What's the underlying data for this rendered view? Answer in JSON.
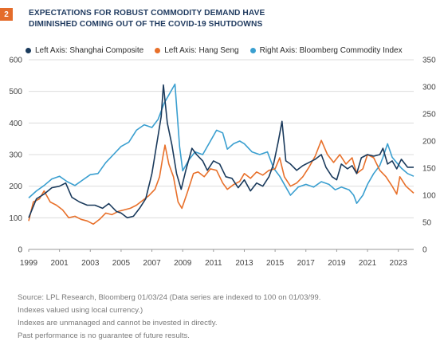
{
  "badge": "2",
  "title_lines": [
    "EXPECTATIONS FOR ROBUST COMMODITY DEMAND HAVE",
    "DIMINISHED COMING OUT OF THE COVID-19 SHUTDOWNS"
  ],
  "notes": [
    "Source: LPL Research, Bloomberg 01/03/24  (Data series are indexed to 100 on 01/03/99.",
    "Indexes valued using local currency.)",
    "Indexes are unmanaged and cannot be invested in directly.",
    "Past performance is no guarantee of future results."
  ],
  "chart_data": {
    "type": "line",
    "left_axis": {
      "min": 0,
      "max": 600,
      "ticks": [
        "0",
        "100",
        "200",
        "300",
        "400",
        "500",
        "600"
      ]
    },
    "right_axis": {
      "min": 0,
      "max": 350,
      "ticks": [
        "0",
        "50",
        "100",
        "150",
        "200",
        "250",
        "300",
        "350"
      ]
    },
    "x_axis": {
      "min": 1999,
      "max": 2024,
      "ticks": [
        "1999",
        "2001",
        "2003",
        "2005",
        "2007",
        "2009",
        "2011",
        "2013",
        "2015",
        "2017",
        "2019",
        "2021",
        "2023"
      ]
    },
    "grid": "horizontal",
    "legend_position": "top",
    "series": [
      {
        "name": "Left Axis: Shanghai Composite",
        "axis": "left",
        "color": "#1a3a5c",
        "points": [
          [
            1999.0,
            100
          ],
          [
            1999.5,
            160
          ],
          [
            2000.0,
            175
          ],
          [
            2000.5,
            195
          ],
          [
            2001.0,
            200
          ],
          [
            2001.4,
            210
          ],
          [
            2001.8,
            165
          ],
          [
            2002.3,
            150
          ],
          [
            2002.8,
            140
          ],
          [
            2003.3,
            140
          ],
          [
            2003.8,
            130
          ],
          [
            2004.2,
            145
          ],
          [
            2004.7,
            120
          ],
          [
            2005.0,
            115
          ],
          [
            2005.4,
            100
          ],
          [
            2005.8,
            105
          ],
          [
            2006.2,
            130
          ],
          [
            2006.6,
            160
          ],
          [
            2007.0,
            240
          ],
          [
            2007.3,
            330
          ],
          [
            2007.6,
            420
          ],
          [
            2007.75,
            520
          ],
          [
            2008.0,
            400
          ],
          [
            2008.3,
            330
          ],
          [
            2008.6,
            240
          ],
          [
            2008.9,
            190
          ],
          [
            2009.2,
            250
          ],
          [
            2009.6,
            320
          ],
          [
            2009.9,
            300
          ],
          [
            2010.3,
            280
          ],
          [
            2010.6,
            250
          ],
          [
            2011.0,
            280
          ],
          [
            2011.4,
            270
          ],
          [
            2011.8,
            230
          ],
          [
            2012.2,
            225
          ],
          [
            2012.6,
            195
          ],
          [
            2013.0,
            220
          ],
          [
            2013.4,
            185
          ],
          [
            2013.8,
            210
          ],
          [
            2014.2,
            200
          ],
          [
            2014.6,
            230
          ],
          [
            2014.9,
            270
          ],
          [
            2015.2,
            340
          ],
          [
            2015.45,
            405
          ],
          [
            2015.7,
            280
          ],
          [
            2016.0,
            270
          ],
          [
            2016.4,
            250
          ],
          [
            2016.8,
            265
          ],
          [
            2017.2,
            275
          ],
          [
            2017.6,
            285
          ],
          [
            2018.0,
            300
          ],
          [
            2018.3,
            260
          ],
          [
            2018.7,
            230
          ],
          [
            2019.0,
            220
          ],
          [
            2019.3,
            270
          ],
          [
            2019.7,
            255
          ],
          [
            2020.0,
            265
          ],
          [
            2020.3,
            240
          ],
          [
            2020.6,
            290
          ],
          [
            2021.0,
            300
          ],
          [
            2021.4,
            295
          ],
          [
            2021.8,
            300
          ],
          [
            2022.0,
            320
          ],
          [
            2022.3,
            270
          ],
          [
            2022.6,
            280
          ],
          [
            2022.9,
            255
          ],
          [
            2023.2,
            285
          ],
          [
            2023.6,
            260
          ],
          [
            2024.0,
            260
          ]
        ]
      },
      {
        "name": "Left Axis: Hang Seng",
        "axis": "left",
        "color": "#e8702a",
        "points": [
          [
            1999.0,
            90
          ],
          [
            1999.3,
            150
          ],
          [
            1999.7,
            160
          ],
          [
            2000.0,
            185
          ],
          [
            2000.4,
            150
          ],
          [
            2000.8,
            140
          ],
          [
            2001.2,
            125
          ],
          [
            2001.6,
            100
          ],
          [
            2002.0,
            105
          ],
          [
            2002.4,
            95
          ],
          [
            2002.8,
            90
          ],
          [
            2003.2,
            80
          ],
          [
            2003.6,
            95
          ],
          [
            2004.0,
            115
          ],
          [
            2004.4,
            110
          ],
          [
            2004.8,
            120
          ],
          [
            2005.2,
            125
          ],
          [
            2005.6,
            130
          ],
          [
            2006.0,
            140
          ],
          [
            2006.4,
            155
          ],
          [
            2006.8,
            170
          ],
          [
            2007.2,
            190
          ],
          [
            2007.5,
            230
          ],
          [
            2007.7,
            290
          ],
          [
            2007.85,
            330
          ],
          [
            2008.1,
            270
          ],
          [
            2008.4,
            230
          ],
          [
            2008.7,
            150
          ],
          [
            2008.95,
            130
          ],
          [
            2009.3,
            180
          ],
          [
            2009.7,
            240
          ],
          [
            2010.0,
            245
          ],
          [
            2010.4,
            230
          ],
          [
            2010.8,
            255
          ],
          [
            2011.2,
            250
          ],
          [
            2011.6,
            210
          ],
          [
            2011.9,
            190
          ],
          [
            2012.3,
            205
          ],
          [
            2012.7,
            215
          ],
          [
            2013.0,
            240
          ],
          [
            2013.4,
            225
          ],
          [
            2013.8,
            245
          ],
          [
            2014.2,
            235
          ],
          [
            2014.6,
            250
          ],
          [
            2015.0,
            255
          ],
          [
            2015.3,
            290
          ],
          [
            2015.6,
            230
          ],
          [
            2016.0,
            200
          ],
          [
            2016.4,
            210
          ],
          [
            2016.8,
            230
          ],
          [
            2017.2,
            260
          ],
          [
            2017.6,
            295
          ],
          [
            2018.0,
            345
          ],
          [
            2018.4,
            300
          ],
          [
            2018.8,
            275
          ],
          [
            2019.2,
            300
          ],
          [
            2019.6,
            270
          ],
          [
            2020.0,
            290
          ],
          [
            2020.3,
            240
          ],
          [
            2020.7,
            255
          ],
          [
            2021.0,
            300
          ],
          [
            2021.4,
            290
          ],
          [
            2021.8,
            250
          ],
          [
            2022.2,
            230
          ],
          [
            2022.6,
            200
          ],
          [
            2022.9,
            175
          ],
          [
            2023.1,
            230
          ],
          [
            2023.5,
            200
          ],
          [
            2024.0,
            178
          ]
        ]
      },
      {
        "name": "Right Axis: Bloomberg Commodity Index",
        "axis": "right",
        "color": "#3a9fd0",
        "points": [
          [
            1999.0,
            95
          ],
          [
            1999.5,
            108
          ],
          [
            2000.0,
            118
          ],
          [
            2000.5,
            130
          ],
          [
            2001.0,
            135
          ],
          [
            2001.5,
            125
          ],
          [
            2002.0,
            118
          ],
          [
            2002.5,
            128
          ],
          [
            2003.0,
            138
          ],
          [
            2003.5,
            140
          ],
          [
            2004.0,
            160
          ],
          [
            2004.5,
            175
          ],
          [
            2005.0,
            190
          ],
          [
            2005.5,
            198
          ],
          [
            2006.0,
            220
          ],
          [
            2006.5,
            230
          ],
          [
            2007.0,
            225
          ],
          [
            2007.4,
            240
          ],
          [
            2007.8,
            270
          ],
          [
            2008.2,
            290
          ],
          [
            2008.5,
            305
          ],
          [
            2008.8,
            190
          ],
          [
            2009.0,
            145
          ],
          [
            2009.4,
            165
          ],
          [
            2009.8,
            180
          ],
          [
            2010.3,
            175
          ],
          [
            2010.8,
            200
          ],
          [
            2011.2,
            220
          ],
          [
            2011.6,
            215
          ],
          [
            2011.9,
            185
          ],
          [
            2012.3,
            195
          ],
          [
            2012.7,
            200
          ],
          [
            2013.0,
            195
          ],
          [
            2013.5,
            180
          ],
          [
            2014.0,
            175
          ],
          [
            2014.5,
            180
          ],
          [
            2014.9,
            150
          ],
          [
            2015.3,
            135
          ],
          [
            2015.7,
            115
          ],
          [
            2016.0,
            100
          ],
          [
            2016.5,
            115
          ],
          [
            2017.0,
            120
          ],
          [
            2017.5,
            115
          ],
          [
            2018.0,
            125
          ],
          [
            2018.5,
            120
          ],
          [
            2018.9,
            110
          ],
          [
            2019.3,
            115
          ],
          [
            2019.8,
            110
          ],
          [
            2020.1,
            100
          ],
          [
            2020.3,
            85
          ],
          [
            2020.7,
            100
          ],
          [
            2021.0,
            120
          ],
          [
            2021.4,
            140
          ],
          [
            2021.8,
            155
          ],
          [
            2022.0,
            170
          ],
          [
            2022.3,
            195
          ],
          [
            2022.6,
            170
          ],
          [
            2022.9,
            160
          ],
          [
            2023.2,
            150
          ],
          [
            2023.6,
            140
          ],
          [
            2024.0,
            135
          ]
        ]
      }
    ]
  }
}
